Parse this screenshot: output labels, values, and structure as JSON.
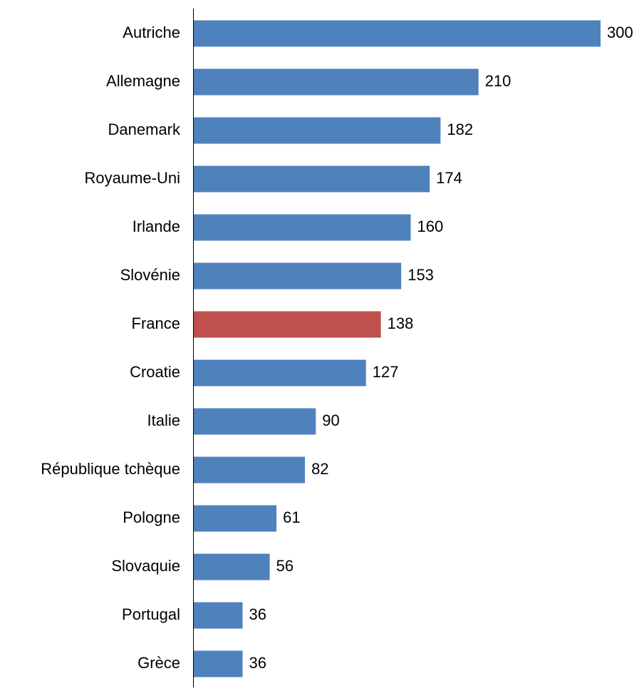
{
  "chart_data": {
    "type": "bar",
    "orientation": "horizontal",
    "categories": [
      "Autriche",
      "Allemagne",
      "Danemark",
      "Royaume-Uni",
      "Irlande",
      "Slovénie",
      "France",
      "Croatie",
      "Italie",
      "République tchèque",
      "Pologne",
      "Slovaquie",
      "Portugal",
      "Grèce"
    ],
    "values": [
      300,
      210,
      182,
      174,
      160,
      153,
      138,
      127,
      90,
      82,
      61,
      56,
      36,
      36
    ],
    "colors": [
      "#4f81bd",
      "#4f81bd",
      "#4f81bd",
      "#4f81bd",
      "#4f81bd",
      "#4f81bd",
      "#c0504d",
      "#4f81bd",
      "#4f81bd",
      "#4f81bd",
      "#4f81bd",
      "#4f81bd",
      "#4f81bd",
      "#4f81bd"
    ],
    "data_labels": true
  }
}
